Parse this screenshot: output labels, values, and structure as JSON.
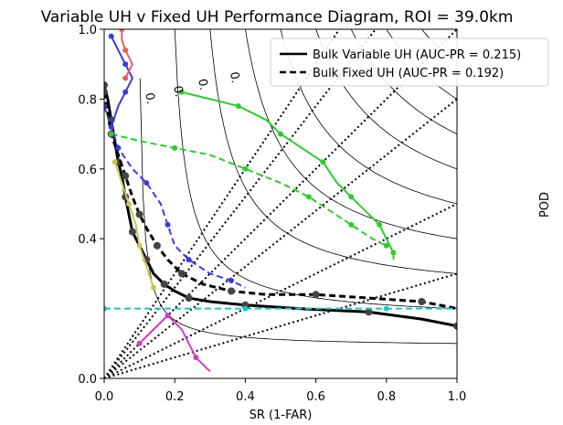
{
  "chart_data": {
    "type": "line",
    "title": "Variable UH v Fixed UH Performance Diagram, ROI = 39.0km",
    "xlabel": "SR (1-FAR)",
    "ylabel": "POD",
    "xlim": [
      0.0,
      1.0
    ],
    "ylim": [
      0.0,
      1.0
    ],
    "x_ticks": [
      "0.0",
      "0.2",
      "0.4",
      "0.6",
      "0.8",
      "1.0"
    ],
    "y_ticks": [
      "0.0",
      "0.4",
      "0.6",
      "0.8",
      "1.0"
    ],
    "legend_placement": "upper-right",
    "csi_contour_labels": [
      "0.",
      "0.",
      "0.",
      "0."
    ],
    "series": [
      {
        "name": "Bulk Variable UH (AUC-PR = 0.215)",
        "style": "solid",
        "color": "#000000",
        "points": [
          [
            0.0,
            0.84
          ],
          [
            0.01,
            0.8
          ],
          [
            0.02,
            0.74
          ],
          [
            0.03,
            0.68
          ],
          [
            0.04,
            0.62
          ],
          [
            0.05,
            0.58
          ],
          [
            0.06,
            0.52
          ],
          [
            0.07,
            0.47
          ],
          [
            0.08,
            0.42
          ],
          [
            0.1,
            0.38
          ],
          [
            0.12,
            0.34
          ],
          [
            0.14,
            0.3
          ],
          [
            0.17,
            0.27
          ],
          [
            0.2,
            0.25
          ],
          [
            0.24,
            0.23
          ],
          [
            0.3,
            0.22
          ],
          [
            0.4,
            0.21
          ],
          [
            0.55,
            0.2
          ],
          [
            0.75,
            0.19
          ],
          [
            0.9,
            0.17
          ],
          [
            1.0,
            0.15
          ]
        ]
      },
      {
        "name": "Bulk Fixed UH (AUC-PR = 0.192)",
        "style": "dashed",
        "color": "#000000",
        "points": [
          [
            0.0,
            0.82
          ],
          [
            0.01,
            0.76
          ],
          [
            0.02,
            0.7
          ],
          [
            0.04,
            0.64
          ],
          [
            0.06,
            0.58
          ],
          [
            0.08,
            0.52
          ],
          [
            0.1,
            0.47
          ],
          [
            0.12,
            0.43
          ],
          [
            0.15,
            0.38
          ],
          [
            0.18,
            0.34
          ],
          [
            0.22,
            0.3
          ],
          [
            0.28,
            0.27
          ],
          [
            0.36,
            0.25
          ],
          [
            0.46,
            0.24
          ],
          [
            0.6,
            0.24
          ],
          [
            0.75,
            0.23
          ],
          [
            0.9,
            0.22
          ],
          [
            1.0,
            0.2
          ]
        ]
      },
      {
        "name": "",
        "style": "solid",
        "color": "#2ecc2e",
        "points": [
          [
            0.22,
            0.82
          ],
          [
            0.3,
            0.8
          ],
          [
            0.38,
            0.78
          ],
          [
            0.46,
            0.74
          ],
          [
            0.5,
            0.7
          ],
          [
            0.56,
            0.66
          ],
          [
            0.62,
            0.62
          ],
          [
            0.66,
            0.56
          ],
          [
            0.7,
            0.52
          ],
          [
            0.74,
            0.48
          ],
          [
            0.78,
            0.44
          ],
          [
            0.8,
            0.4
          ],
          [
            0.82,
            0.36
          ],
          [
            0.82,
            0.34
          ]
        ]
      },
      {
        "name": "",
        "style": "dashed",
        "color": "#2ecc2e",
        "points": [
          [
            0.02,
            0.7
          ],
          [
            0.1,
            0.68
          ],
          [
            0.2,
            0.66
          ],
          [
            0.3,
            0.64
          ],
          [
            0.4,
            0.6
          ],
          [
            0.5,
            0.56
          ],
          [
            0.58,
            0.52
          ],
          [
            0.64,
            0.48
          ],
          [
            0.7,
            0.44
          ],
          [
            0.76,
            0.4
          ],
          [
            0.8,
            0.38
          ]
        ]
      },
      {
        "name": "",
        "style": "dashed",
        "color": "#3a3ae0",
        "points": [
          [
            0.0,
            0.78
          ],
          [
            0.02,
            0.72
          ],
          [
            0.04,
            0.66
          ],
          [
            0.08,
            0.6
          ],
          [
            0.12,
            0.56
          ],
          [
            0.16,
            0.5
          ],
          [
            0.18,
            0.44
          ],
          [
            0.2,
            0.38
          ],
          [
            0.24,
            0.34
          ],
          [
            0.3,
            0.3
          ],
          [
            0.36,
            0.28
          ],
          [
            0.4,
            0.26
          ]
        ]
      },
      {
        "name": "",
        "style": "solid",
        "color": "#3a3ae0",
        "points": [
          [
            0.02,
            0.98
          ],
          [
            0.04,
            0.94
          ],
          [
            0.06,
            0.9
          ],
          [
            0.08,
            0.86
          ],
          [
            0.06,
            0.82
          ],
          [
            0.04,
            0.78
          ],
          [
            0.02,
            0.72
          ]
        ]
      },
      {
        "name": "",
        "style": "solid",
        "color": "#c8c85a",
        "points": [
          [
            0.03,
            0.62
          ],
          [
            0.05,
            0.56
          ],
          [
            0.07,
            0.5
          ],
          [
            0.09,
            0.44
          ],
          [
            0.1,
            0.38
          ],
          [
            0.12,
            0.32
          ],
          [
            0.14,
            0.26
          ]
        ]
      },
      {
        "name": "",
        "style": "dashed",
        "color": "#22c4c4",
        "points": [
          [
            0.0,
            0.2
          ],
          [
            0.2,
            0.2
          ],
          [
            0.4,
            0.2
          ],
          [
            0.6,
            0.2
          ],
          [
            0.8,
            0.2
          ],
          [
            1.0,
            0.2
          ]
        ]
      },
      {
        "name": "",
        "style": "solid",
        "color": "#d040c0",
        "points": [
          [
            0.1,
            0.1
          ],
          [
            0.14,
            0.14
          ],
          [
            0.18,
            0.18
          ],
          [
            0.22,
            0.14
          ],
          [
            0.26,
            0.06
          ],
          [
            0.3,
            0.02
          ]
        ]
      },
      {
        "name": "",
        "style": "solid",
        "color": "#e06060",
        "points": [
          [
            0.05,
            1.0
          ],
          [
            0.05,
            0.97
          ],
          [
            0.06,
            0.94
          ],
          [
            0.08,
            0.9
          ],
          [
            0.06,
            0.86
          ]
        ]
      }
    ]
  }
}
